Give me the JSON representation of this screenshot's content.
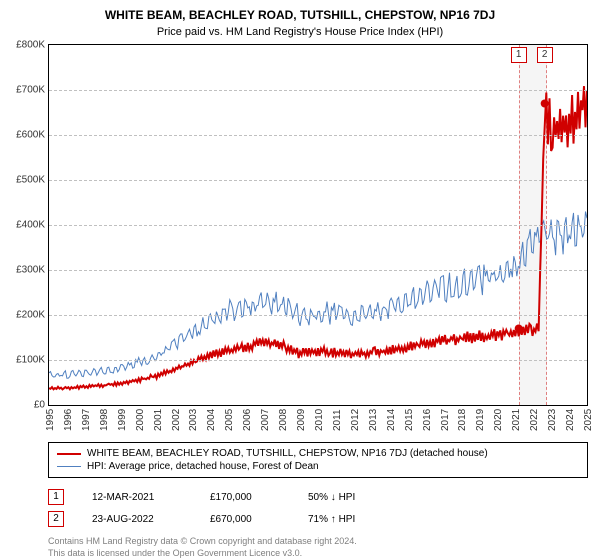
{
  "title": "WHITE BEAM, BEACHLEY ROAD, TUTSHILL, CHEPSTOW, NP16 7DJ",
  "subtitle": "Price paid vs. HM Land Registry's House Price Index (HPI)",
  "chart": {
    "type": "line",
    "xlim": [
      1995,
      2025
    ],
    "ylim": [
      0,
      800000
    ],
    "ytick_step": 100000,
    "yticks": [
      "£0",
      "£100K",
      "£200K",
      "£300K",
      "£400K",
      "£500K",
      "£600K",
      "£700K",
      "£800K"
    ],
    "xticks": [
      1995,
      1996,
      1997,
      1998,
      1999,
      2000,
      2001,
      2002,
      2003,
      2004,
      2005,
      2006,
      2007,
      2008,
      2009,
      2010,
      2011,
      2012,
      2013,
      2014,
      2015,
      2016,
      2017,
      2018,
      2019,
      2020,
      2021,
      2022,
      2023,
      2024,
      2025
    ],
    "background_color": "#ffffff",
    "grid_color": "#c0c0c0",
    "border_color": "#000000",
    "series": [
      {
        "name": "price_paid",
        "label": "WHITE BEAM, BEACHLEY ROAD, TUTSHILL, CHEPSTOW, NP16 7DJ (detached house)",
        "color": "#d00000",
        "line_width": 2,
        "data": [
          [
            1995,
            38000
          ],
          [
            1996,
            40000
          ],
          [
            1997,
            42000
          ],
          [
            1998,
            45000
          ],
          [
            1999,
            50000
          ],
          [
            2000,
            58000
          ],
          [
            2001,
            68000
          ],
          [
            2002,
            82000
          ],
          [
            2003,
            100000
          ],
          [
            2004,
            115000
          ],
          [
            2005,
            125000
          ],
          [
            2006,
            135000
          ],
          [
            2007,
            145000
          ],
          [
            2008,
            140000
          ],
          [
            2009,
            120000
          ],
          [
            2010,
            125000
          ],
          [
            2011,
            122000
          ],
          [
            2012,
            120000
          ],
          [
            2013,
            122000
          ],
          [
            2014,
            128000
          ],
          [
            2015,
            135000
          ],
          [
            2016,
            142000
          ],
          [
            2017,
            150000
          ],
          [
            2018,
            155000
          ],
          [
            2019,
            160000
          ],
          [
            2020,
            162000
          ],
          [
            2021,
            168000
          ],
          [
            2021.19,
            170000
          ],
          [
            2022.3,
            175000
          ],
          [
            2022.64,
            670000
          ],
          [
            2023,
            650000
          ],
          [
            2023.5,
            640000
          ],
          [
            2024,
            655000
          ],
          [
            2024.5,
            680000
          ],
          [
            2025,
            700000
          ]
        ]
      },
      {
        "name": "hpi",
        "label": "HPI: Average price, detached house, Forest of Dean",
        "color": "#5080c0",
        "line_width": 1,
        "data": [
          [
            1995,
            70000
          ],
          [
            1996,
            72000
          ],
          [
            1997,
            75000
          ],
          [
            1998,
            80000
          ],
          [
            1999,
            88000
          ],
          [
            2000,
            100000
          ],
          [
            2001,
            115000
          ],
          [
            2002,
            140000
          ],
          [
            2003,
            170000
          ],
          [
            2004,
            200000
          ],
          [
            2005,
            220000
          ],
          [
            2006,
            230000
          ],
          [
            2007,
            245000
          ],
          [
            2008,
            235000
          ],
          [
            2009,
            210000
          ],
          [
            2010,
            220000
          ],
          [
            2011,
            215000
          ],
          [
            2012,
            212000
          ],
          [
            2013,
            218000
          ],
          [
            2014,
            230000
          ],
          [
            2015,
            245000
          ],
          [
            2016,
            260000
          ],
          [
            2017,
            275000
          ],
          [
            2018,
            285000
          ],
          [
            2019,
            295000
          ],
          [
            2020,
            300000
          ],
          [
            2021,
            330000
          ],
          [
            2022,
            380000
          ],
          [
            2023,
            400000
          ],
          [
            2024,
            405000
          ],
          [
            2025,
            415000
          ]
        ]
      }
    ],
    "sale_markers": [
      {
        "num": "1",
        "x": 2021.19,
        "y": 170000,
        "color": "#d00000"
      },
      {
        "num": "2",
        "x": 2022.64,
        "y": 670000,
        "color": "#d00000"
      }
    ],
    "marker_band": {
      "x_start": 2021.19,
      "x_end": 2022.64,
      "fill": "#f5f5f5",
      "border": "#e08080"
    }
  },
  "legend": {
    "border_color": "#000000"
  },
  "sale_table": [
    {
      "num": "1",
      "border_color": "#d00000",
      "date": "12-MAR-2021",
      "price": "£170,000",
      "pct": "50%",
      "arrow": "↓",
      "vs": "HPI"
    },
    {
      "num": "2",
      "border_color": "#d00000",
      "date": "23-AUG-2022",
      "price": "£670,000",
      "pct": "71%",
      "arrow": "↑",
      "vs": "HPI"
    }
  ],
  "footer": {
    "line1": "Contains HM Land Registry data © Crown copyright and database right 2024.",
    "line2": "This data is licensed under the Open Government Licence v3.0."
  }
}
